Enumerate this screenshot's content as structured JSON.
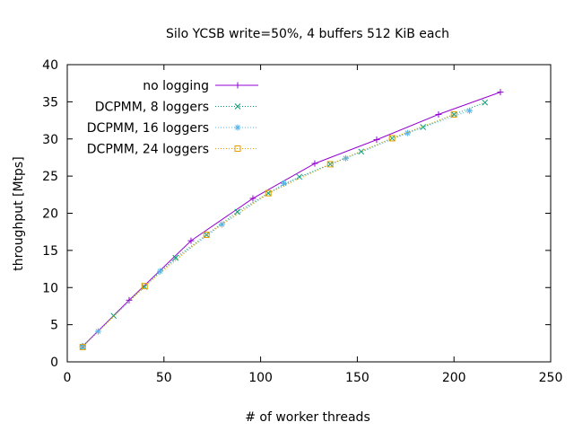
{
  "chart_data": {
    "type": "line",
    "title": "Silo YCSB write=50%, 4 buffers 512 KiB each",
    "xlabel": "# of worker threads",
    "ylabel": "throughput [Mtps]",
    "xlim": [
      0,
      250
    ],
    "ylim": [
      0,
      40
    ],
    "xticks": [
      0,
      50,
      100,
      150,
      200,
      250
    ],
    "yticks": [
      0,
      5,
      10,
      15,
      20,
      25,
      30,
      35,
      40
    ],
    "grid": false,
    "legend_position": "top-left",
    "series": [
      {
        "name": "no logging",
        "color": "#9400d3",
        "marker": "plus",
        "dash": "solid",
        "x": [
          8,
          32,
          64,
          96,
          128,
          160,
          192,
          224
        ],
        "y": [
          2.1,
          8.3,
          16.3,
          22.0,
          26.7,
          29.9,
          33.3,
          36.3
        ]
      },
      {
        "name": "DCPMM, 8 loggers",
        "color": "#009e73",
        "marker": "cross",
        "dash": "dotted",
        "x": [
          8,
          24,
          40,
          56,
          72,
          88,
          104,
          120,
          136,
          152,
          168,
          184,
          200,
          216
        ],
        "y": [
          2.0,
          6.2,
          10.1,
          14.0,
          17.1,
          20.2,
          22.7,
          24.9,
          26.6,
          28.3,
          30.1,
          31.6,
          33.3,
          34.9
        ]
      },
      {
        "name": "DCPMM, 16 loggers",
        "color": "#56b4e9",
        "marker": "star",
        "dash": "dotted",
        "x": [
          8,
          16,
          48,
          80,
          112,
          144,
          176,
          208
        ],
        "y": [
          2.1,
          4.1,
          12.2,
          18.5,
          24.0,
          27.4,
          30.8,
          33.8
        ]
      },
      {
        "name": "DCPMM, 24 loggers",
        "color": "#e69f00",
        "marker": "square",
        "dash": "dotted",
        "x": [
          8,
          40,
          72,
          104,
          136,
          168,
          200
        ],
        "y": [
          2.0,
          10.2,
          17.1,
          22.7,
          26.6,
          30.1,
          33.3
        ]
      }
    ]
  }
}
